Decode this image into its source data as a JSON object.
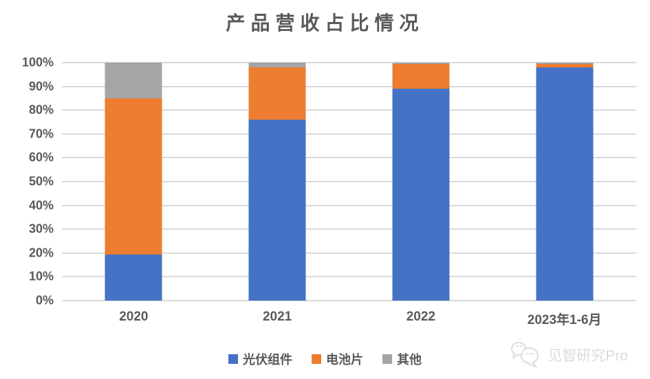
{
  "chart_data": {
    "type": "bar",
    "variant": "stacked-100-percent-column",
    "title": "产品营收占比情况",
    "categories": [
      "2020",
      "2021",
      "2022",
      "2023年1-6月"
    ],
    "series": [
      {
        "name": "光伏组件",
        "color": "#4472C4",
        "values": [
          19.5,
          76,
          89,
          98
        ]
      },
      {
        "name": "电池片",
        "color": "#ED7D31",
        "values": [
          65.5,
          22,
          10.4,
          1.5
        ]
      },
      {
        "name": "其他",
        "color": "#A5A5A5",
        "values": [
          15,
          2,
          0.6,
          0.5
        ]
      }
    ],
    "y_ticks": [
      "100%",
      "90%",
      "80%",
      "70%",
      "60%",
      "50%",
      "40%",
      "30%",
      "20%",
      "10%",
      "0%"
    ],
    "ylim": [
      0,
      100
    ],
    "grid": true,
    "legend_position": "bottom"
  },
  "colors": {
    "text": "#595959",
    "gridline": "#d9d9d9",
    "background": "#ffffff",
    "watermark": "#dbdbdb"
  },
  "watermark": {
    "icon": "chat-bubbles-icon",
    "text": "见智研究Pro"
  }
}
